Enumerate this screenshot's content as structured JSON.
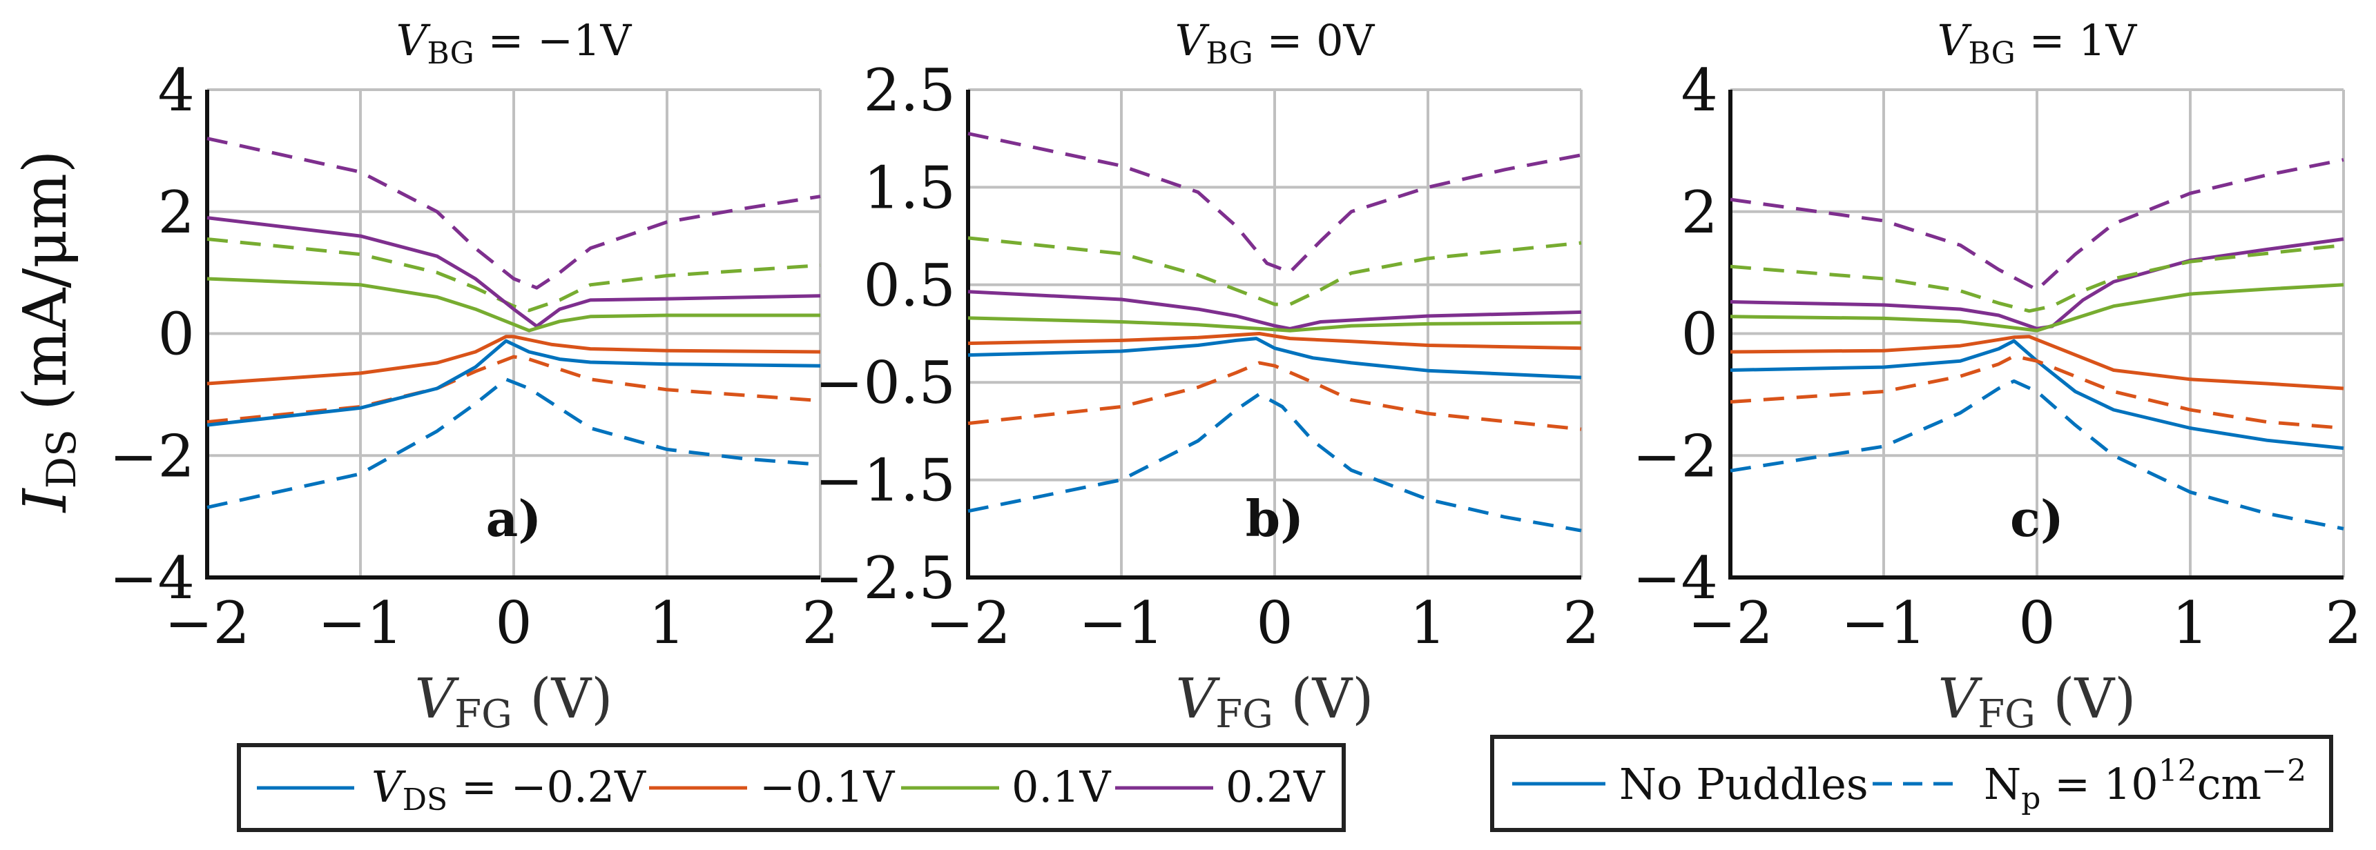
{
  "chart_data": [
    {
      "type": "line",
      "panel_label": "a)",
      "title": {
        "var": "V",
        "sub": "BG",
        "rest": " = −1V"
      },
      "xlabel": {
        "var": "V",
        "sub": "FG",
        "rest": " (V)"
      },
      "ylabel": {
        "var": "I",
        "sub": "DS",
        "rest": " (mA/μm)"
      },
      "xlim": [
        -2,
        2
      ],
      "ylim": [
        -4,
        4
      ],
      "xticks": [
        -2,
        -1,
        0,
        1,
        2
      ],
      "xtick_labels": [
        "−2",
        "−1",
        "0",
        "1",
        "2"
      ],
      "yticks": [
        -4,
        -2,
        0,
        2,
        4
      ],
      "ytick_labels": [
        "−4",
        "−2",
        "0",
        "2",
        "4"
      ],
      "grid": true,
      "series": [
        {
          "name": "VDS=0.2V dashed",
          "color": "#7E2F8E",
          "dashed": true,
          "x": [
            -2,
            -1,
            -0.5,
            -0.25,
            0,
            0.15,
            0.3,
            0.5,
            1,
            1.5,
            2
          ],
          "y": [
            3.2,
            2.65,
            2.0,
            1.4,
            0.9,
            0.75,
            1.0,
            1.4,
            1.83,
            2.05,
            2.25
          ]
        },
        {
          "name": "VDS=0.1V dashed",
          "color": "#77AC30",
          "dashed": true,
          "x": [
            -2,
            -1,
            -0.5,
            -0.25,
            0,
            0.1,
            0.3,
            0.5,
            1,
            2
          ],
          "y": [
            1.55,
            1.3,
            1.0,
            0.75,
            0.45,
            0.38,
            0.55,
            0.8,
            0.95,
            1.12
          ]
        },
        {
          "name": "VDS=0.2V solid",
          "color": "#7E2F8E",
          "dashed": false,
          "x": [
            -2,
            -1,
            -0.5,
            -0.25,
            0,
            0.15,
            0.3,
            0.5,
            1,
            2
          ],
          "y": [
            1.9,
            1.6,
            1.27,
            0.9,
            0.4,
            0.12,
            0.4,
            0.55,
            0.57,
            0.62
          ]
        },
        {
          "name": "VDS=0.1V solid",
          "color": "#77AC30",
          "dashed": false,
          "x": [
            -2,
            -1,
            -0.5,
            -0.25,
            0,
            0.1,
            0.3,
            0.5,
            1,
            2
          ],
          "y": [
            0.9,
            0.8,
            0.6,
            0.4,
            0.15,
            0.05,
            0.2,
            0.28,
            0.3,
            0.3
          ]
        },
        {
          "name": "VDS=-0.1V solid",
          "color": "#D95319",
          "dashed": false,
          "x": [
            -2,
            -1,
            -0.5,
            -0.25,
            -0.05,
            0,
            0.25,
            0.5,
            1,
            2
          ],
          "y": [
            -0.82,
            -0.65,
            -0.48,
            -0.3,
            -0.05,
            -0.05,
            -0.18,
            -0.25,
            -0.28,
            -0.3
          ]
        },
        {
          "name": "VDS=-0.1V dashed",
          "color": "#D95319",
          "dashed": true,
          "x": [
            -2,
            -1,
            -0.5,
            -0.25,
            0,
            0.1,
            0.5,
            1,
            2
          ],
          "y": [
            -1.45,
            -1.2,
            -0.9,
            -0.62,
            -0.38,
            -0.42,
            -0.75,
            -0.92,
            -1.1
          ]
        },
        {
          "name": "VDS=-0.2V solid",
          "color": "#0072BD",
          "dashed": false,
          "x": [
            -2,
            -1,
            -0.5,
            -0.25,
            -0.05,
            0.1,
            0.3,
            0.5,
            1,
            2
          ],
          "y": [
            -1.5,
            -1.22,
            -0.9,
            -0.55,
            -0.12,
            -0.3,
            -0.42,
            -0.47,
            -0.5,
            -0.53
          ]
        },
        {
          "name": "VDS=-0.2V dashed",
          "color": "#0072BD",
          "dashed": true,
          "x": [
            -2,
            -1,
            -0.5,
            -0.25,
            -0.05,
            0.1,
            0.5,
            1,
            1.5,
            2
          ],
          "y": [
            -2.85,
            -2.3,
            -1.6,
            -1.15,
            -0.75,
            -0.9,
            -1.55,
            -1.9,
            -2.05,
            -2.15
          ]
        }
      ]
    },
    {
      "type": "line",
      "panel_label": "b)",
      "title": {
        "var": "V",
        "sub": "BG",
        "rest": " = 0V"
      },
      "xlabel": {
        "var": "V",
        "sub": "FG",
        "rest": " (V)"
      },
      "xlim": [
        -2,
        2
      ],
      "ylim": [
        -2.5,
        2.5
      ],
      "xticks": [
        -2,
        -1,
        0,
        1,
        2
      ],
      "xtick_labels": [
        "−2",
        "−1",
        "0",
        "1",
        "2"
      ],
      "yticks": [
        -2.5,
        -1.5,
        -0.5,
        0.5,
        1.5,
        2.5
      ],
      "ytick_labels": [
        "−2.5",
        "−1.5",
        "−0.5",
        "0.5",
        "1.5",
        "2.5"
      ],
      "grid": true,
      "series": [
        {
          "name": "VDS=0.2V dashed",
          "color": "#7E2F8E",
          "dashed": true,
          "x": [
            -2,
            -1,
            -0.5,
            -0.25,
            -0.05,
            0.1,
            0.3,
            0.5,
            1,
            1.5,
            2
          ],
          "y": [
            2.05,
            1.72,
            1.45,
            1.1,
            0.72,
            0.63,
            0.95,
            1.25,
            1.5,
            1.68,
            1.83
          ]
        },
        {
          "name": "VDS=0.1V dashed",
          "color": "#77AC30",
          "dashed": true,
          "x": [
            -2,
            -1,
            -0.5,
            -0.25,
            0,
            0.1,
            0.3,
            0.5,
            1,
            2
          ],
          "y": [
            0.98,
            0.82,
            0.6,
            0.45,
            0.3,
            0.3,
            0.45,
            0.62,
            0.77,
            0.93
          ]
        },
        {
          "name": "VDS=0.2V solid",
          "color": "#7E2F8E",
          "dashed": false,
          "x": [
            -2,
            -1,
            -0.5,
            -0.25,
            0,
            0.1,
            0.3,
            1,
            2
          ],
          "y": [
            0.43,
            0.35,
            0.25,
            0.18,
            0.08,
            0.05,
            0.12,
            0.18,
            0.22
          ]
        },
        {
          "name": "VDS=0.1V solid",
          "color": "#77AC30",
          "dashed": false,
          "x": [
            -2,
            -1,
            -0.5,
            0,
            0.1,
            0.5,
            1,
            2
          ],
          "y": [
            0.16,
            0.12,
            0.09,
            0.04,
            0.03,
            0.08,
            0.1,
            0.11
          ]
        },
        {
          "name": "VDS=-0.1V solid",
          "color": "#D95319",
          "dashed": false,
          "x": [
            -2,
            -1,
            -0.5,
            -0.1,
            0.1,
            0.5,
            1,
            2
          ],
          "y": [
            -0.1,
            -0.07,
            -0.04,
            0.0,
            -0.05,
            -0.08,
            -0.12,
            -0.15
          ]
        },
        {
          "name": "VDS=-0.2V solid",
          "color": "#0072BD",
          "dashed": false,
          "x": [
            -2,
            -1,
            -0.5,
            -0.25,
            -0.12,
            0,
            0.25,
            0.5,
            1,
            2
          ],
          "y": [
            -0.22,
            -0.18,
            -0.12,
            -0.07,
            -0.05,
            -0.15,
            -0.25,
            -0.3,
            -0.38,
            -0.45
          ]
        },
        {
          "name": "VDS=-0.1V dashed",
          "color": "#D95319",
          "dashed": true,
          "x": [
            -2,
            -1,
            -0.5,
            -0.25,
            -0.1,
            0,
            0.25,
            0.5,
            1,
            2
          ],
          "y": [
            -0.92,
            -0.75,
            -0.55,
            -0.4,
            -0.3,
            -0.33,
            -0.5,
            -0.68,
            -0.82,
            -0.98
          ]
        },
        {
          "name": "VDS=-0.2V dashed",
          "color": "#0072BD",
          "dashed": true,
          "x": [
            -2,
            -1,
            -0.5,
            -0.25,
            -0.1,
            0.05,
            0.25,
            0.5,
            1,
            1.5,
            2
          ],
          "y": [
            -1.82,
            -1.5,
            -1.1,
            -0.78,
            -0.62,
            -0.75,
            -1.1,
            -1.4,
            -1.7,
            -1.88,
            -2.02
          ]
        }
      ]
    },
    {
      "type": "line",
      "panel_label": "c)",
      "title": {
        "var": "V",
        "sub": "BG",
        "rest": " = 1V"
      },
      "xlabel": {
        "var": "V",
        "sub": "FG",
        "rest": " (V)"
      },
      "xlim": [
        -2,
        2
      ],
      "ylim": [
        -4,
        4
      ],
      "xticks": [
        -2,
        -1,
        0,
        1,
        2
      ],
      "xtick_labels": [
        "−2",
        "−1",
        "0",
        "1",
        "2"
      ],
      "yticks": [
        -4,
        -2,
        0,
        2,
        4
      ],
      "ytick_labels": [
        "−4",
        "−2",
        "0",
        "2",
        "4"
      ],
      "grid": true,
      "series": [
        {
          "name": "VDS=0.2V dashed",
          "color": "#7E2F8E",
          "dashed": true,
          "x": [
            -2,
            -1,
            -0.5,
            -0.25,
            0,
            0.25,
            0.5,
            1,
            1.5,
            2
          ],
          "y": [
            2.2,
            1.85,
            1.45,
            1.05,
            0.72,
            1.3,
            1.8,
            2.3,
            2.6,
            2.85
          ]
        },
        {
          "name": "VDS=0.2V solid",
          "color": "#7E2F8E",
          "dashed": false,
          "x": [
            -2,
            -1,
            -0.5,
            -0.25,
            0,
            0.1,
            0.3,
            0.5,
            1,
            1.5,
            2
          ],
          "y": [
            0.52,
            0.47,
            0.4,
            0.3,
            0.08,
            0.12,
            0.55,
            0.85,
            1.2,
            1.38,
            1.55
          ]
        },
        {
          "name": "VDS=0.1V dashed",
          "color": "#77AC30",
          "dashed": true,
          "x": [
            -2,
            -1,
            -0.5,
            -0.25,
            -0.05,
            0.1,
            0.3,
            0.5,
            1,
            2
          ],
          "y": [
            1.1,
            0.9,
            0.7,
            0.5,
            0.37,
            0.45,
            0.7,
            0.9,
            1.18,
            1.45
          ]
        },
        {
          "name": "VDS=0.1V solid",
          "color": "#77AC30",
          "dashed": false,
          "x": [
            -2,
            -1,
            -0.5,
            0,
            0.25,
            0.5,
            1,
            1.5,
            2
          ],
          "y": [
            0.28,
            0.25,
            0.2,
            0.05,
            0.25,
            0.45,
            0.65,
            0.73,
            0.8
          ]
        },
        {
          "name": "VDS=-0.1V solid",
          "color": "#D95319",
          "dashed": false,
          "x": [
            -2,
            -1,
            -0.5,
            -0.15,
            -0.05,
            0.25,
            0.5,
            1,
            1.5,
            2
          ],
          "y": [
            -0.3,
            -0.28,
            -0.2,
            -0.06,
            -0.05,
            -0.35,
            -0.6,
            -0.75,
            -0.82,
            -0.9
          ]
        },
        {
          "name": "VDS=-0.2V solid",
          "color": "#0072BD",
          "dashed": false,
          "x": [
            -2,
            -1,
            -0.5,
            -0.25,
            -0.15,
            0,
            0.25,
            0.5,
            1,
            1.5,
            2
          ],
          "y": [
            -0.6,
            -0.55,
            -0.45,
            -0.25,
            -0.12,
            -0.45,
            -0.95,
            -1.25,
            -1.55,
            -1.75,
            -1.88
          ]
        },
        {
          "name": "VDS=-0.1V dashed",
          "color": "#D95319",
          "dashed": true,
          "x": [
            -2,
            -1,
            -0.5,
            -0.25,
            -0.15,
            0,
            0.25,
            0.5,
            1,
            1.5,
            2
          ],
          "y": [
            -1.12,
            -0.95,
            -0.7,
            -0.5,
            -0.37,
            -0.45,
            -0.7,
            -0.95,
            -1.25,
            -1.45,
            -1.55
          ]
        },
        {
          "name": "VDS=-0.2V dashed",
          "color": "#0072BD",
          "dashed": true,
          "x": [
            -2,
            -1,
            -0.5,
            -0.25,
            -0.15,
            0,
            0.25,
            0.5,
            1,
            1.5,
            2
          ],
          "y": [
            -2.25,
            -1.85,
            -1.3,
            -0.9,
            -0.78,
            -0.95,
            -1.5,
            -2.0,
            -2.6,
            -2.95,
            -3.2
          ]
        }
      ]
    }
  ],
  "legend_vds": {
    "prefix_var": "V",
    "prefix_sub": "DS",
    "prefix_eq": " = ",
    "items": [
      {
        "label": "−0.2V",
        "color": "#0072BD"
      },
      {
        "label": "−0.1V",
        "color": "#D95319"
      },
      {
        "label": "0.1V",
        "color": "#77AC30"
      },
      {
        "label": "0.2V",
        "color": "#7E2F8E"
      }
    ]
  },
  "legend_style": {
    "solid_label": "No Puddles",
    "dashed_label": {
      "N": "N",
      "sub": "p",
      "eq": " = 10",
      "exp": "12",
      "unit": "cm",
      "unit_exp": "−2"
    },
    "color": "#0072BD"
  }
}
